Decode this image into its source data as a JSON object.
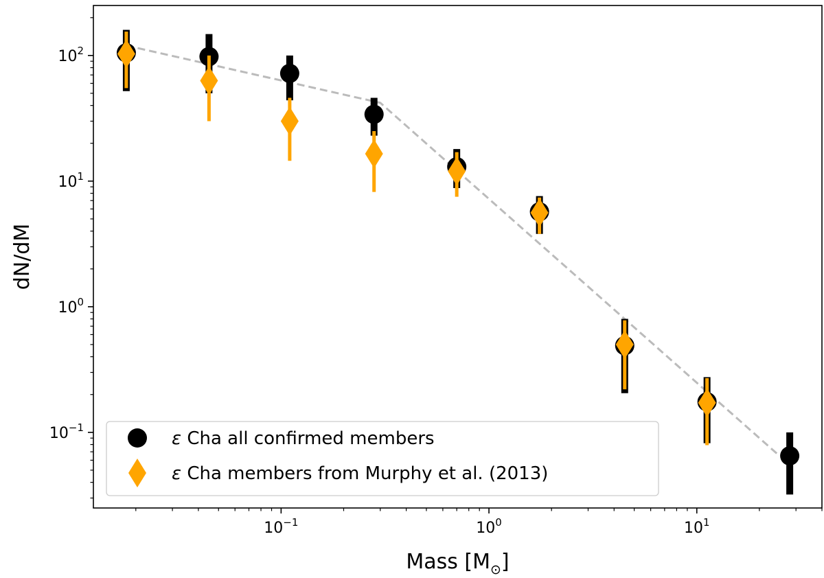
{
  "chart_data": {
    "type": "scatter",
    "title": "",
    "xlabel": "Mass [M☉]",
    "xlabel_main": "Mass [M",
    "xlabel_sub": "⊙",
    "xlabel_end": "]",
    "ylabel": "dN/dM",
    "xscale": "log",
    "yscale": "log",
    "xlim": [
      0.0125,
      40
    ],
    "ylim": [
      0.025,
      250
    ],
    "x_ticks": [
      {
        "value": 0.1,
        "base": "10",
        "exp": "−1"
      },
      {
        "value": 1,
        "base": "10",
        "exp": "0"
      },
      {
        "value": 10,
        "base": "10",
        "exp": "1"
      }
    ],
    "y_ticks": [
      {
        "value": 0.1,
        "base": "10",
        "exp": "−1"
      },
      {
        "value": 1,
        "base": "10",
        "exp": "0"
      },
      {
        "value": 10,
        "base": "10",
        "exp": "1"
      },
      {
        "value": 100,
        "base": "10",
        "exp": "2"
      }
    ],
    "series": [
      {
        "name": "all-members",
        "label_prefix": "ε",
        "label": " Cha all confirmed members",
        "color": "#000000",
        "marker": "circle",
        "points": [
          {
            "x": 0.018,
            "y": 105,
            "ylo": 52,
            "yhi": 160
          },
          {
            "x": 0.045,
            "y": 98,
            "ylo": 50,
            "yhi": 148
          },
          {
            "x": 0.11,
            "y": 72,
            "ylo": 44,
            "yhi": 100
          },
          {
            "x": 0.28,
            "y": 34,
            "ylo": 23,
            "yhi": 46
          },
          {
            "x": 0.7,
            "y": 13,
            "ylo": 8.8,
            "yhi": 18
          },
          {
            "x": 1.75,
            "y": 5.7,
            "ylo": 3.8,
            "yhi": 7.6
          },
          {
            "x": 4.5,
            "y": 0.49,
            "ylo": 0.205,
            "yhi": 0.8
          },
          {
            "x": 11.2,
            "y": 0.175,
            "ylo": 0.082,
            "yhi": 0.275
          },
          {
            "x": 28,
            "y": 0.065,
            "ylo": 0.032,
            "yhi": 0.1
          }
        ]
      },
      {
        "name": "murphy-members",
        "label_prefix": "ε",
        "label": " Cha members from Murphy et al. (2013)",
        "color": "#FFA500",
        "marker": "diamond",
        "points": [
          {
            "x": 0.018,
            "y": 103,
            "ylo": 55,
            "yhi": 155
          },
          {
            "x": 0.045,
            "y": 63,
            "ylo": 30,
            "yhi": 100
          },
          {
            "x": 0.11,
            "y": 30,
            "ylo": 14.5,
            "yhi": 46
          },
          {
            "x": 0.28,
            "y": 16.5,
            "ylo": 8.2,
            "yhi": 25
          },
          {
            "x": 0.7,
            "y": 12,
            "ylo": 7.5,
            "yhi": 17
          },
          {
            "x": 1.75,
            "y": 5.6,
            "ylo": 3.8,
            "yhi": 7.4
          },
          {
            "x": 4.5,
            "y": 0.5,
            "ylo": 0.22,
            "yhi": 0.78
          },
          {
            "x": 11.2,
            "y": 0.172,
            "ylo": 0.079,
            "yhi": 0.27
          }
        ]
      }
    ],
    "fit_line": {
      "color": "#BBBBBB",
      "style": "dashed",
      "points": [
        {
          "x": 0.018,
          "y": 120
        },
        {
          "x": 0.3,
          "y": 42
        },
        {
          "x": 25,
          "y": 0.065
        }
      ]
    },
    "legend": {
      "position": "lower-left"
    }
  }
}
